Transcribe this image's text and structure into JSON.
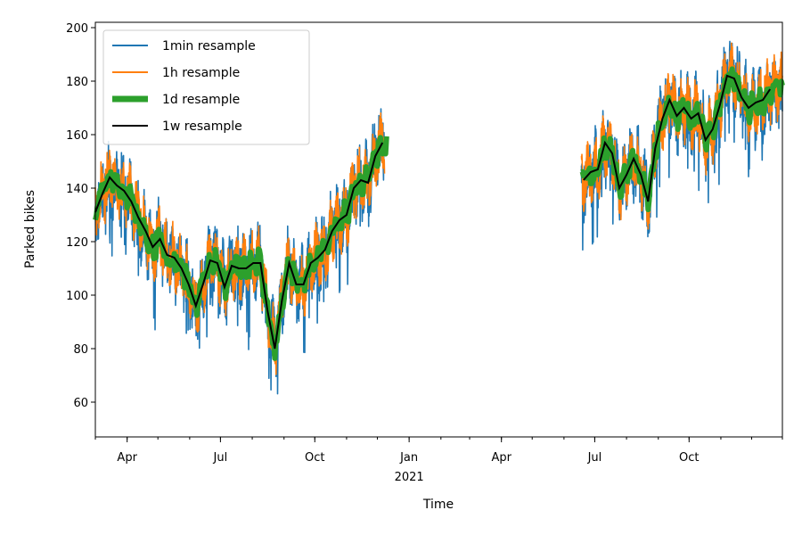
{
  "chart_data": {
    "type": "line",
    "xlabel": "Time",
    "ylabel": "Parked bikes",
    "xlim": [
      "2020-03-01",
      "2021-12-31"
    ],
    "ylim": [
      47,
      202
    ],
    "x_ticks": [
      {
        "date": "2020-04-01",
        "label": "Apr"
      },
      {
        "date": "2020-07-01",
        "label": "Jul"
      },
      {
        "date": "2020-10-01",
        "label": "Oct"
      },
      {
        "date": "2021-01-01",
        "label": "Jan",
        "sublabel": "2021"
      },
      {
        "date": "2021-04-01",
        "label": "Apr"
      },
      {
        "date": "2021-07-01",
        "label": "Jul"
      },
      {
        "date": "2021-10-01",
        "label": "Oct"
      }
    ],
    "y_ticks": [
      60,
      80,
      100,
      120,
      140,
      160,
      180,
      200
    ],
    "grid": false,
    "legend": {
      "position": "top-left",
      "entries": [
        "1min resample",
        "1h resample",
        "1d resample",
        "1w resample"
      ]
    },
    "series": [
      {
        "name": "1w resample",
        "color": "#000000",
        "points": [
          [
            "2020-03-01",
            131
          ],
          [
            "2020-03-08",
            138
          ],
          [
            "2020-03-15",
            144
          ],
          [
            "2020-03-22",
            141
          ],
          [
            "2020-03-29",
            139
          ],
          [
            "2020-04-05",
            135
          ],
          [
            "2020-04-12",
            129
          ],
          [
            "2020-04-19",
            124
          ],
          [
            "2020-04-26",
            118
          ],
          [
            "2020-05-03",
            121
          ],
          [
            "2020-05-10",
            115
          ],
          [
            "2020-05-17",
            114
          ],
          [
            "2020-05-24",
            110
          ],
          [
            "2020-05-31",
            104
          ],
          [
            "2020-06-07",
            96
          ],
          [
            "2020-06-14",
            104
          ],
          [
            "2020-06-21",
            113
          ],
          [
            "2020-06-28",
            112
          ],
          [
            "2020-07-05",
            103
          ],
          [
            "2020-07-12",
            111
          ],
          [
            "2020-07-19",
            110
          ],
          [
            "2020-07-26",
            110
          ],
          [
            "2020-08-02",
            112
          ],
          [
            "2020-08-09",
            112
          ],
          [
            "2020-08-16",
            94
          ],
          [
            "2020-08-23",
            80
          ],
          [
            "2020-08-30",
            98
          ],
          [
            "2020-09-06",
            112
          ],
          [
            "2020-09-13",
            104
          ],
          [
            "2020-09-20",
            104
          ],
          [
            "2020-09-27",
            112
          ],
          [
            "2020-10-04",
            114
          ],
          [
            "2020-10-11",
            117
          ],
          [
            "2020-10-18",
            124
          ],
          [
            "2020-10-25",
            128
          ],
          [
            "2020-11-01",
            130
          ],
          [
            "2020-11-08",
            140
          ],
          [
            "2020-11-15",
            143
          ],
          [
            "2020-11-22",
            142
          ],
          [
            "2020-11-29",
            152
          ],
          [
            "2020-12-06",
            157
          ]
        ]
      },
      {
        "name": "1w resample",
        "color": "#000000",
        "points": [
          [
            "2021-06-20",
            143
          ],
          [
            "2021-06-27",
            146
          ],
          [
            "2021-07-04",
            147
          ],
          [
            "2021-07-11",
            157
          ],
          [
            "2021-07-18",
            153
          ],
          [
            "2021-07-25",
            140
          ],
          [
            "2021-08-01",
            145
          ],
          [
            "2021-08-08",
            151
          ],
          [
            "2021-08-15",
            145
          ],
          [
            "2021-08-22",
            135
          ],
          [
            "2021-08-29",
            155
          ],
          [
            "2021-09-05",
            166
          ],
          [
            "2021-09-12",
            173
          ],
          [
            "2021-09-19",
            167
          ],
          [
            "2021-09-26",
            170
          ],
          [
            "2021-10-03",
            166
          ],
          [
            "2021-10-10",
            168
          ],
          [
            "2021-10-17",
            158
          ],
          [
            "2021-10-24",
            162
          ],
          [
            "2021-10-31",
            171
          ],
          [
            "2021-11-07",
            182
          ],
          [
            "2021-11-14",
            181
          ],
          [
            "2021-11-21",
            174
          ],
          [
            "2021-11-28",
            170
          ],
          [
            "2021-12-05",
            172
          ],
          [
            "2021-12-12",
            173
          ],
          [
            "2021-12-19",
            177
          ]
        ]
      },
      {
        "name": "1d resample",
        "color": "#2ca02c",
        "amplitude": 6,
        "ranges": [
          [
            "2020-03-01",
            "2020-12-10"
          ],
          [
            "2021-06-18",
            "2021-12-31"
          ]
        ]
      },
      {
        "name": "1h resample",
        "color": "#ff7f0e",
        "amplitude": 14,
        "ranges": [
          [
            "2020-03-01",
            "2020-12-08"
          ],
          [
            "2021-06-18",
            "2021-12-31"
          ]
        ]
      },
      {
        "name": "1min resample",
        "color": "#1f77b4",
        "amplitude": 17,
        "ranges": [
          [
            "2020-03-01",
            "2020-12-08"
          ],
          [
            "2021-06-18",
            "2021-12-31"
          ]
        ]
      }
    ]
  }
}
